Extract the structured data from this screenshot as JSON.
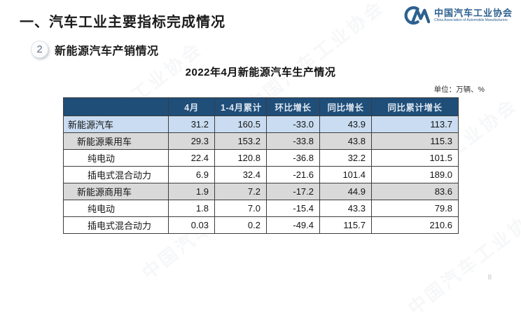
{
  "page": {
    "title": "一、汽车工业主要指标完成情况",
    "page_number": "8"
  },
  "logo": {
    "org_cn": "中国汽车工业协会",
    "org_en": "China Association of Automobile Manufacturers",
    "color": "#2d618f"
  },
  "watermark": {
    "text": "中国汽车工业协会"
  },
  "section": {
    "badge": "2",
    "label": "新能源汽车产销情况"
  },
  "table": {
    "title": "2022年4月新能源汽车生产情况",
    "unit": "单位：万辆、%",
    "headers": [
      "",
      "4月",
      "1-4月累计",
      "环比增长",
      "同比增长",
      "同比累计增长"
    ],
    "rows": [
      {
        "label": "新能源汽车",
        "indent": 0,
        "bg": "blue",
        "values": [
          "31.2",
          "160.5",
          "-33.0",
          "43.9",
          "113.7"
        ]
      },
      {
        "label": "新能源乘用车",
        "indent": 1,
        "bg": "gray",
        "values": [
          "29.3",
          "153.2",
          "-33.8",
          "43.8",
          "115.3"
        ]
      },
      {
        "label": "纯电动",
        "indent": 2,
        "bg": "white",
        "values": [
          "22.4",
          "120.8",
          "-36.8",
          "32.2",
          "101.5"
        ]
      },
      {
        "label": "插电式混合动力",
        "indent": 2,
        "bg": "white",
        "values": [
          "6.9",
          "32.4",
          "-21.6",
          "101.4",
          "189.0"
        ]
      },
      {
        "label": "新能源商用车",
        "indent": 1,
        "bg": "gray",
        "values": [
          "1.9",
          "7.2",
          "-17.2",
          "44.9",
          "83.6"
        ]
      },
      {
        "label": "纯电动",
        "indent": 2,
        "bg": "white",
        "values": [
          "1.8",
          "7.0",
          "-15.4",
          "43.3",
          "79.8"
        ]
      },
      {
        "label": "插电式混合动力",
        "indent": 2,
        "bg": "white",
        "values": [
          "0.03",
          "0.2",
          "-49.4",
          "115.7",
          "210.6"
        ]
      }
    ]
  },
  "colors": {
    "header_bg": "#1f4e79",
    "header_text": "#dce6f0",
    "row_highlight_blue": "#c9dcf1",
    "row_gray": "#d9d9d9",
    "border": "#3d3d3d",
    "logo_blue": "#2d618f"
  },
  "chart_data": {
    "type": "table",
    "title": "2022年4月新能源汽车生产情况",
    "unit": "万辆、%",
    "columns": [
      "4月",
      "1-4月累计",
      "环比增长",
      "同比增长",
      "同比累计增长"
    ],
    "rows": [
      {
        "name": "新能源汽车",
        "values": [
          31.2,
          160.5,
          -33.0,
          43.9,
          113.7
        ]
      },
      {
        "name": "新能源乘用车",
        "values": [
          29.3,
          153.2,
          -33.8,
          43.8,
          115.3
        ]
      },
      {
        "name": "新能源乘用车-纯电动",
        "values": [
          22.4,
          120.8,
          -36.8,
          32.2,
          101.5
        ]
      },
      {
        "name": "新能源乘用车-插电式混合动力",
        "values": [
          6.9,
          32.4,
          -21.6,
          101.4,
          189.0
        ]
      },
      {
        "name": "新能源商用车",
        "values": [
          1.9,
          7.2,
          -17.2,
          44.9,
          83.6
        ]
      },
      {
        "name": "新能源商用车-纯电动",
        "values": [
          1.8,
          7.0,
          -15.4,
          43.3,
          79.8
        ]
      },
      {
        "name": "新能源商用车-插电式混合动力",
        "values": [
          0.03,
          0.2,
          -49.4,
          115.7,
          210.6
        ]
      }
    ]
  }
}
